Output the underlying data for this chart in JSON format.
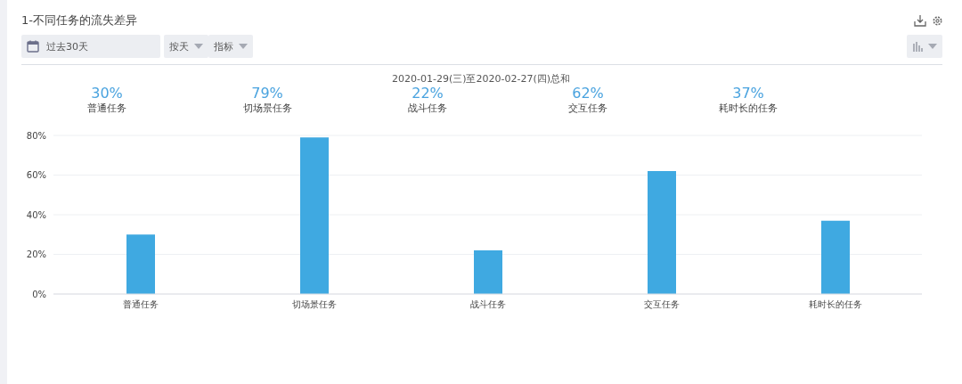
{
  "chart_data": {
    "type": "bar",
    "title": "1-不同任务的流失差异",
    "subtitle": "2020-01-29(三)至2020-02-27(四)总和",
    "annotations": [
      "过去30天",
      "按天",
      "指标"
    ],
    "categories": [
      "普通任务",
      "切场景任务",
      "战斗任务",
      "交互任务",
      "耗时长的任务"
    ],
    "values": [
      30,
      79,
      22,
      62,
      37
    ],
    "value_labels": [
      "30%",
      "79%",
      "22%",
      "62%",
      "37%"
    ],
    "color": "#3fa9e1",
    "ylim": [
      0,
      80
    ],
    "yticks": [
      {
        "value": 0,
        "label": "0%"
      },
      {
        "value": 20,
        "label": "20%"
      },
      {
        "value": 40,
        "label": "40%"
      },
      {
        "value": 60,
        "label": "60%"
      },
      {
        "value": 80,
        "label": "80%"
      }
    ],
    "grid": "y",
    "legend": false
  }
}
